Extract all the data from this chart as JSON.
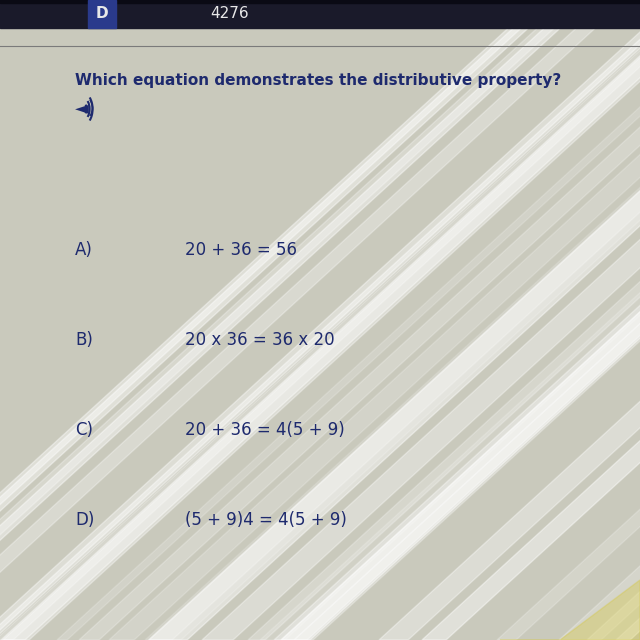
{
  "header_label": "D",
  "header_number": "4276",
  "question": "Which equation demonstrates the distributive property?",
  "options": [
    {
      "label": "A)",
      "equation": "20 + 36 = 56"
    },
    {
      "label": "B)",
      "equation": "20 x 36 = 36 x 20"
    },
    {
      "label": "C)",
      "equation": "20 + 36 = 4(5 + 9)"
    },
    {
      "label": "D)",
      "equation": "(5 + 9)4 = 4(5 + 9)"
    }
  ],
  "bg_color": "#c9c9bc",
  "header_bg": "#1a1a2a",
  "header_label_bg": "#2a3a8c",
  "text_color": "#1e2a6e",
  "header_text_color": "#e8e8e8",
  "separator_color": "#7a7a7a",
  "streak_color": "#d8d8cc",
  "figsize": [
    6.4,
    6.4
  ],
  "dpi": 100
}
